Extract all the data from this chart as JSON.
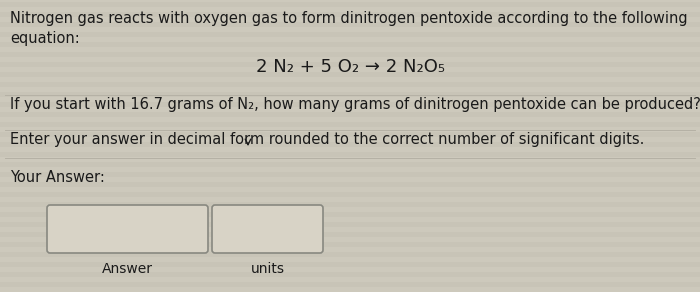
{
  "background_color": "#cdc9bc",
  "stripe_color1": "#cdc9bc",
  "stripe_color2": "#c8c4b7",
  "text_color": "#1a1a1a",
  "line1": "Nitrogen gas reacts with oxygen gas to form dinitrogen pentoxide according to the following",
  "line2": "equation:",
  "equation": "2 N₂ + 5 O₂ → 2 N₂O₅",
  "question": "If you start with 16.7 grams of N₂, how many grams of dinitrogen pentoxide can be produced?",
  "instruction": "Enter your answer in decimal form rounded to the correct number of significant digits.",
  "your_answer_label": "Your Answer:",
  "answer_label": "Answer",
  "units_label": "units",
  "font_size_main": 10.5,
  "font_size_eq": 13,
  "font_size_label": 10
}
